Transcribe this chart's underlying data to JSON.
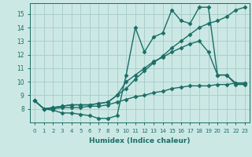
{
  "title": "",
  "xlabel": "Humidex (Indice chaleur)",
  "ylabel": "",
  "xlim": [
    -0.5,
    23.5
  ],
  "ylim": [
    7,
    15.8
  ],
  "yticks": [
    8,
    9,
    10,
    11,
    12,
    13,
    14,
    15
  ],
  "xticks": [
    0,
    1,
    2,
    3,
    4,
    5,
    6,
    7,
    8,
    9,
    10,
    11,
    12,
    13,
    14,
    15,
    16,
    17,
    18,
    19,
    20,
    21,
    22,
    23
  ],
  "bg_color": "#cce8e5",
  "grid_color": "#aacfcc",
  "line_color": "#1a6e65",
  "line_width": 1.0,
  "marker": "D",
  "marker_size": 2.5,
  "series": [
    {
      "x": [
        0,
        1,
        2,
        3,
        4,
        5,
        6,
        7,
        8,
        9,
        10,
        11,
        12,
        13,
        14,
        15,
        16,
        17,
        18,
        19,
        20,
        21,
        22,
        23
      ],
      "y": [
        8.6,
        8.0,
        7.9,
        7.7,
        7.7,
        7.6,
        7.5,
        7.3,
        7.3,
        7.5,
        10.5,
        14.0,
        12.2,
        13.3,
        13.6,
        15.3,
        14.5,
        14.3,
        15.5,
        15.5,
        10.5,
        10.5,
        9.9,
        9.9
      ]
    },
    {
      "x": [
        0,
        1,
        2,
        3,
        4,
        5,
        6,
        7,
        8,
        9,
        10,
        11,
        12,
        13,
        14,
        15,
        16,
        17,
        18,
        19,
        20,
        21,
        22,
        23
      ],
      "y": [
        8.6,
        8.0,
        8.1,
        8.2,
        8.3,
        8.3,
        8.3,
        8.4,
        8.5,
        9.0,
        9.5,
        10.2,
        10.8,
        11.4,
        11.9,
        12.5,
        13.0,
        13.5,
        14.0,
        14.3,
        14.5,
        14.8,
        15.3,
        15.5
      ]
    },
    {
      "x": [
        0,
        1,
        2,
        3,
        4,
        5,
        6,
        7,
        8,
        9,
        10,
        11,
        12,
        13,
        14,
        15,
        16,
        17,
        18,
        19,
        20,
        21,
        22,
        23
      ],
      "y": [
        8.6,
        8.0,
        8.1,
        8.2,
        8.3,
        8.3,
        8.3,
        8.4,
        8.5,
        9.0,
        10.0,
        10.5,
        11.0,
        11.5,
        11.8,
        12.2,
        12.5,
        12.8,
        13.0,
        12.2,
        10.5,
        10.5,
        9.8,
        9.8
      ]
    },
    {
      "x": [
        0,
        1,
        2,
        3,
        4,
        5,
        6,
        7,
        8,
        9,
        10,
        11,
        12,
        13,
        14,
        15,
        16,
        17,
        18,
        19,
        20,
        21,
        22,
        23
      ],
      "y": [
        8.6,
        8.0,
        8.0,
        8.1,
        8.1,
        8.1,
        8.2,
        8.2,
        8.3,
        8.5,
        8.7,
        8.9,
        9.0,
        9.2,
        9.3,
        9.5,
        9.6,
        9.7,
        9.7,
        9.7,
        9.8,
        9.8,
        9.9,
        9.9
      ]
    }
  ]
}
